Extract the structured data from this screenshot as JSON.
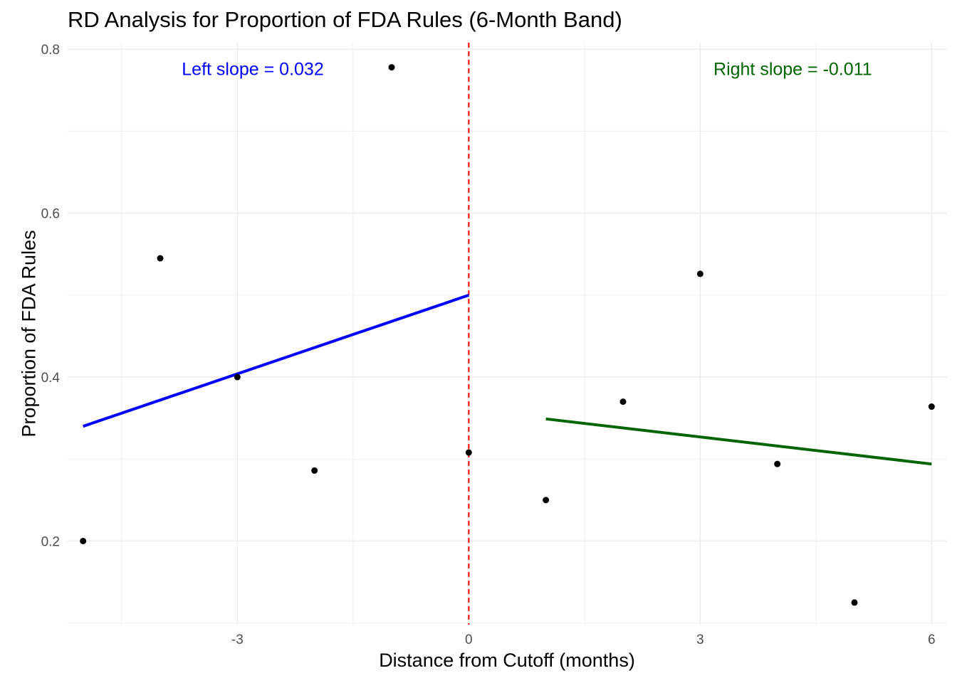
{
  "chart_data": {
    "type": "scatter",
    "title": "RD Analysis for Proportion of FDA Rules (6-Month Band)",
    "xlabel": "Distance from Cutoff (months)",
    "ylabel": "Proportion of FDA Rules",
    "xlim": [
      -5.2,
      6.2
    ],
    "ylim": [
      0.098,
      0.808
    ],
    "x_ticks": [
      -3,
      0,
      3,
      6
    ],
    "x_tick_labels": [
      "-3",
      "0",
      "3",
      "6"
    ],
    "y_ticks": [
      0.2,
      0.4,
      0.6,
      0.8
    ],
    "y_tick_labels": [
      "0.2",
      "0.4",
      "0.6",
      "0.8"
    ],
    "grid": true,
    "points": {
      "x": [
        -5,
        -4,
        -3,
        -2,
        -1,
        0,
        1,
        2,
        3,
        4,
        5,
        6
      ],
      "y": [
        0.2,
        0.545,
        0.4,
        0.286,
        0.778,
        0.308,
        0.25,
        0.37,
        0.526,
        0.294,
        0.125,
        0.364
      ],
      "color": "#000000"
    },
    "fit_lines": [
      {
        "name": "left-fit",
        "x": [
          -5,
          0
        ],
        "y": [
          0.34,
          0.5
        ],
        "color": "#0000ff"
      },
      {
        "name": "right-fit",
        "x": [
          1,
          6
        ],
        "y": [
          0.349,
          0.294
        ],
        "color": "#006400"
      }
    ],
    "cutoff": {
      "x": 0,
      "color": "#ff0000",
      "style": "dashed"
    },
    "annotations": [
      {
        "name": "left-slope-label",
        "text": "Left slope = 0.032",
        "x": -2.8,
        "y": 0.778,
        "color": "#0000ff"
      },
      {
        "name": "right-slope-label",
        "text": "Right slope = -0.011",
        "x": 4.2,
        "y": 0.778,
        "color": "#006400"
      }
    ]
  }
}
